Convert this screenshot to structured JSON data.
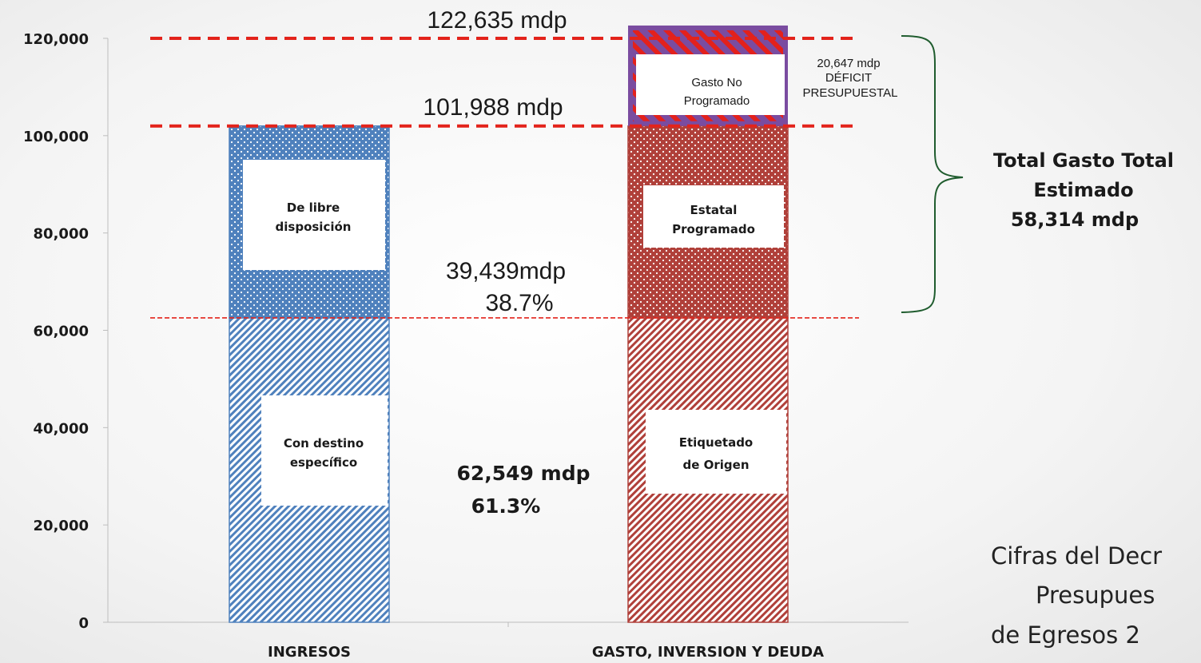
{
  "chart_data": {
    "type": "bar",
    "stacked": true,
    "categories": [
      "INGRESOS",
      "GASTO, INVERSION Y DEUDA"
    ],
    "ylim": [
      0,
      120000
    ],
    "yticks": [
      "0",
      "20,000",
      "40,000",
      "60,000",
      "80,000",
      "100,000",
      "120,000"
    ],
    "ytick_values": [
      0,
      20000,
      40000,
      60000,
      80000,
      100000,
      120000
    ],
    "grid": false,
    "series": [
      {
        "name": "Con destino específico",
        "category": "INGRESOS",
        "values": [
          62549,
          null
        ]
      },
      {
        "name": "De libre disposición",
        "category": "INGRESOS",
        "values": [
          39439,
          null
        ]
      },
      {
        "name": "Etiquetado de Origen",
        "category": "GASTO, INVERSION Y DEUDA",
        "values": [
          null,
          62549
        ]
      },
      {
        "name": "Estatal Programado",
        "category": "GASTO, INVERSION Y DEUDA",
        "values": [
          null,
          39439
        ]
      },
      {
        "name": "Gasto No Programado",
        "category": "GASTO, INVERSION Y DEUDA",
        "values": [
          null,
          20647
        ]
      }
    ],
    "segment_labels": {
      "ingresos_lower": [
        "Con destino",
        "específico"
      ],
      "ingresos_upper": [
        "De libre",
        "disposición"
      ],
      "gasto_lower": [
        "Etiquetado",
        "de Origen"
      ],
      "gasto_upper": [
        "Estatal",
        "Programado"
      ],
      "gasto_top": [
        "Gasto No",
        "Programado"
      ]
    },
    "reference_lines": [
      {
        "value": 122635,
        "label": "122,635 mdp"
      },
      {
        "value": 101988,
        "label": "101,988 mdp"
      },
      {
        "value": 62549
      }
    ],
    "annotations": {
      "mid_amount": "39,439mdp",
      "mid_pct": "38.7%",
      "low_amount": "62,549  mdp",
      "low_pct": "61.3%",
      "deficit": [
        "20,647 mdp",
        "DÉFICIT",
        "PRESUPUESTAL"
      ],
      "total": [
        "Total Gasto Total",
        "Estimado",
        "58,314 mdp"
      ],
      "note": [
        "Cifras del Decr",
        "Presupues",
        "de Egresos 2"
      ]
    },
    "colors": {
      "ingresos": "#4f81bd",
      "gasto": "#b0403a",
      "deficit_border": "#7a4ca0",
      "deficit_stripe": "#e3211c",
      "ref_line": "#e3231b",
      "brace": "#1f5c2e"
    }
  }
}
